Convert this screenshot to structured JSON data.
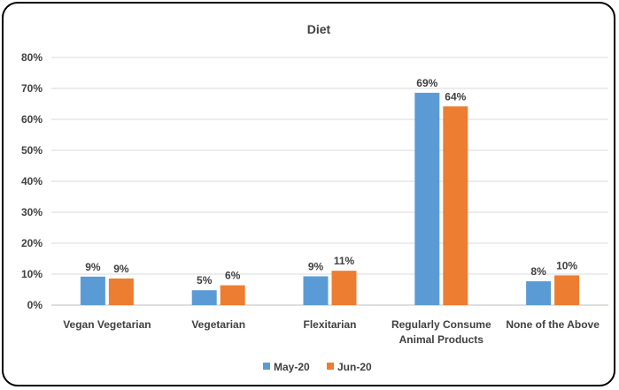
{
  "chart_data": {
    "type": "bar",
    "title": "Diet",
    "categories": [
      [
        "Vegan Vegetarian"
      ],
      [
        "Vegetarian"
      ],
      [
        "Flexitarian"
      ],
      [
        "Regularly Consume",
        "Animal Products"
      ],
      [
        "None of the Above"
      ]
    ],
    "series": [
      {
        "name": "May-20",
        "color": "#5B9BD5",
        "values": [
          9.2,
          4.8,
          9.3,
          68.6,
          7.7
        ],
        "labels": [
          "9%",
          "5%",
          "9%",
          "69%",
          "8%"
        ]
      },
      {
        "name": "Jun-20",
        "color": "#ED7D31",
        "values": [
          8.6,
          6.4,
          11.1,
          64.2,
          9.6
        ],
        "labels": [
          "9%",
          "6%",
          "11%",
          "64%",
          "10%"
        ]
      }
    ],
    "ylim": [
      0,
      80
    ],
    "yticks": [
      0,
      10,
      20,
      30,
      40,
      50,
      60,
      70,
      80
    ],
    "ytick_labels": [
      "0%",
      "10%",
      "20%",
      "30%",
      "40%",
      "50%",
      "60%",
      "70%",
      "80%"
    ],
    "grid": true,
    "legend_position": "bottom",
    "xlabel": "",
    "ylabel": ""
  }
}
